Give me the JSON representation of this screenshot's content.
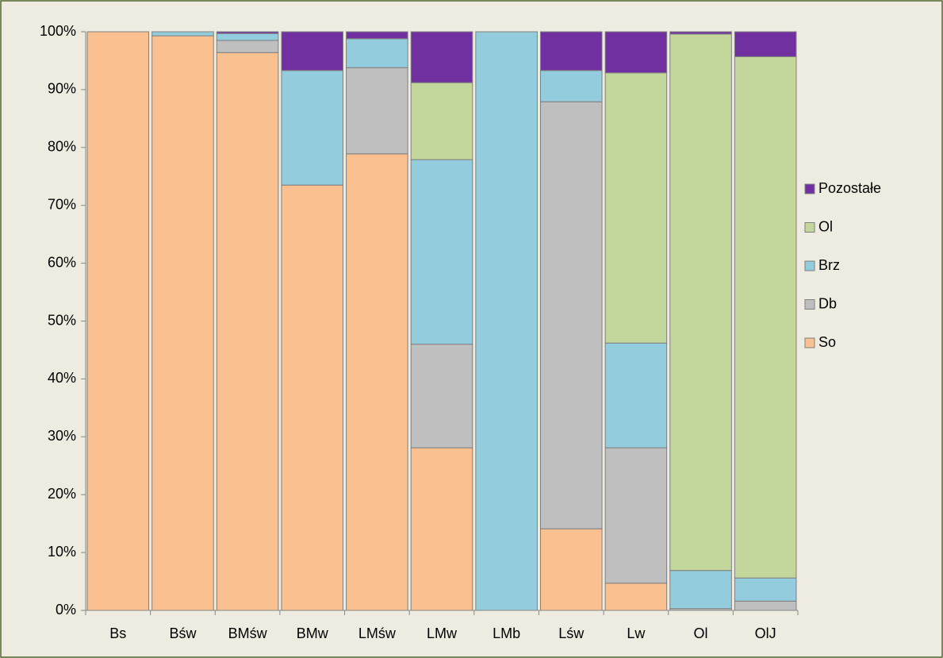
{
  "chart_data": {
    "type": "stacked_bar",
    "categories": [
      "Bs",
      "Bśw",
      "BMśw",
      "BMw",
      "LMśw",
      "LMw",
      "LMb",
      "Lśw",
      "Lw",
      "Ol",
      "OlJ"
    ],
    "series": [
      {
        "name": "So",
        "color": "#fac090",
        "values": [
          100,
          99.3,
          96.4,
          73.5,
          78.9,
          28.1,
          0,
          14.1,
          4.7,
          0,
          0
        ]
      },
      {
        "name": "Db",
        "color": "#bfbfbf",
        "values": [
          0,
          0,
          2.1,
          0,
          14.9,
          17.9,
          0,
          73.8,
          23.4,
          0.3,
          1.6
        ]
      },
      {
        "name": "Brz",
        "color": "#93cddd",
        "values": [
          0,
          0.7,
          1.2,
          19.8,
          5.0,
          31.9,
          100,
          5.4,
          18.1,
          6.6,
          4.0
        ]
      },
      {
        "name": "Ol",
        "color": "#c3d69b",
        "values": [
          0,
          0,
          0,
          0,
          0,
          13.3,
          0,
          0,
          46.7,
          92.7,
          90.1
        ]
      },
      {
        "name": "Pozostałe",
        "color": "#7030a0",
        "values": [
          0,
          0,
          0.3,
          6.7,
          1.2,
          8.8,
          0,
          6.7,
          7.1,
          0.4,
          4.3
        ]
      }
    ],
    "ylim": [
      0,
      100
    ],
    "yticks": [
      {
        "value": 0,
        "label": "0%"
      },
      {
        "value": 10,
        "label": "10%"
      },
      {
        "value": 20,
        "label": "20%"
      },
      {
        "value": 30,
        "label": "30%"
      },
      {
        "value": 40,
        "label": "40%"
      },
      {
        "value": 50,
        "label": "50%"
      },
      {
        "value": 60,
        "label": "60%"
      },
      {
        "value": 70,
        "label": "70%"
      },
      {
        "value": 80,
        "label": "80%"
      },
      {
        "value": 90,
        "label": "90%"
      },
      {
        "value": 100,
        "label": "100%"
      }
    ],
    "legend": "right"
  }
}
